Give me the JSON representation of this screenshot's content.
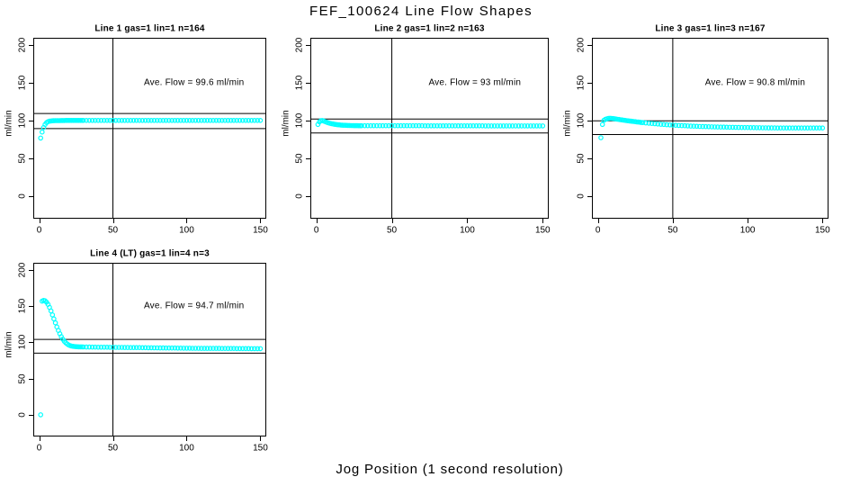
{
  "figure": {
    "title": "FEF_100624  Line Flow Shapes",
    "x_caption": "Jog Position (1 second resolution)",
    "y_axis_label": "ml/min",
    "colors": {
      "points": "#00FFFF",
      "lines": "#000000",
      "background": "#FFFFFF"
    }
  },
  "chart_data": [
    {
      "type": "scatter",
      "title": "Line 1 gas=1 lin=1 n=164",
      "gas": 1,
      "lin": 1,
      "n": 164,
      "ave_flow": 99.6,
      "annotation": "Ave. Flow =  99.6  ml/min",
      "row": 0,
      "col": 0,
      "xlim": [
        -4,
        154
      ],
      "ylim": [
        -30,
        210
      ],
      "x_ticks": [
        0,
        50,
        100,
        150
      ],
      "y_ticks": [
        0,
        50,
        100,
        150,
        200
      ],
      "vline_x": 50,
      "hlines": [
        109.6,
        89.6
      ],
      "x": [
        1,
        2,
        3,
        4,
        5,
        6,
        7,
        8,
        9,
        10,
        11,
        12,
        13,
        14,
        15,
        16,
        17,
        18,
        19,
        20,
        21,
        22,
        23,
        24,
        25,
        26,
        27,
        28,
        29,
        30,
        32,
        34,
        36,
        38,
        40,
        42,
        44,
        46,
        48,
        50,
        52,
        54,
        56,
        58,
        60,
        62,
        64,
        66,
        68,
        70,
        72,
        74,
        76,
        78,
        80,
        82,
        84,
        86,
        88,
        90,
        92,
        94,
        96,
        98,
        100,
        102,
        104,
        106,
        108,
        110,
        112,
        114,
        116,
        118,
        120,
        122,
        124,
        126,
        128,
        130,
        132,
        134,
        136,
        138,
        140,
        142,
        144,
        146,
        148,
        150
      ],
      "y": [
        77,
        85,
        91,
        95,
        97.5,
        98.7,
        99.4,
        99.7,
        99.9,
        100,
        100.1,
        100.1,
        100.2,
        100.2,
        100.3,
        100.3,
        100.3,
        100.4,
        100.4,
        100.4,
        100.4,
        100.4,
        100.4,
        100.4,
        100.4,
        100.4,
        100.4,
        100.4,
        100.4,
        100.4,
        100.4,
        100.4,
        100.4,
        100.4,
        100.4,
        100.4,
        100.4,
        100.4,
        100.4,
        100.4,
        100.4,
        100.4,
        100.4,
        100.4,
        100.4,
        100.4,
        100.4,
        100.4,
        100.4,
        100.4,
        100.4,
        100.4,
        100.4,
        100.4,
        100.4,
        100.4,
        100.4,
        100.4,
        100.4,
        100.4,
        100.4,
        100.4,
        100.4,
        100.4,
        100.4,
        100.4,
        100.4,
        100.4,
        100.4,
        100.4,
        100.4,
        100.4,
        100.4,
        100.4,
        100.4,
        100.4,
        100.4,
        100.4,
        100.4,
        100.4,
        100.4,
        100.4,
        100.4,
        100.4,
        100.4,
        100.4,
        100.4,
        100.4,
        100.4,
        100.4
      ]
    },
    {
      "type": "scatter",
      "title": "Line 2 gas=1 lin=2 n=163",
      "gas": 1,
      "lin": 2,
      "n": 163,
      "ave_flow": 93,
      "annotation": "Ave. Flow =  93  ml/min",
      "row": 0,
      "col": 1,
      "xlim": [
        -4,
        154
      ],
      "ylim": [
        -30,
        210
      ],
      "x_ticks": [
        0,
        50,
        100,
        150
      ],
      "y_ticks": [
        0,
        50,
        100,
        150,
        200
      ],
      "vline_x": 50,
      "hlines": [
        102.3,
        83.7
      ],
      "x": [
        1,
        2,
        3,
        4,
        5,
        6,
        7,
        8,
        9,
        10,
        11,
        12,
        13,
        14,
        15,
        16,
        17,
        18,
        19,
        20,
        21,
        22,
        23,
        24,
        25,
        26,
        27,
        28,
        29,
        30,
        32,
        34,
        36,
        38,
        40,
        42,
        44,
        46,
        48,
        50,
        52,
        54,
        56,
        58,
        60,
        62,
        64,
        66,
        68,
        70,
        72,
        74,
        76,
        78,
        80,
        82,
        84,
        86,
        88,
        90,
        92,
        94,
        96,
        98,
        100,
        102,
        104,
        106,
        108,
        110,
        112,
        114,
        116,
        118,
        120,
        122,
        124,
        126,
        128,
        130,
        132,
        134,
        136,
        138,
        140,
        142,
        144,
        146,
        148,
        150
      ],
      "y": [
        95,
        98.5,
        100,
        100.3,
        99.4,
        98.6,
        97.9,
        97.2,
        96.6,
        96.1,
        95.7,
        95.3,
        95,
        94.7,
        94.5,
        94.3,
        94.1,
        94,
        93.9,
        93.8,
        93.7,
        93.7,
        93.6,
        93.6,
        93.5,
        93.5,
        93.5,
        93.4,
        93.4,
        93.4,
        93.4,
        93.4,
        93.4,
        93.4,
        93.4,
        93.3,
        93.3,
        93.3,
        93.3,
        93.3,
        93.3,
        93.3,
        93.3,
        93.3,
        93.3,
        93.3,
        93.3,
        93.3,
        93.3,
        93.3,
        93.2,
        93.2,
        93.2,
        93.2,
        93.2,
        93.2,
        93.2,
        93.2,
        93.2,
        93.2,
        93.2,
        93.2,
        93.2,
        93.2,
        93.2,
        93.2,
        93.2,
        93.2,
        93.2,
        93.2,
        93.1,
        93.1,
        93.1,
        93.1,
        93.1,
        93.1,
        93.1,
        93.1,
        93.1,
        93.1,
        93.1,
        93.1,
        93.1,
        93.1,
        93.1,
        93.1,
        93.1,
        93.1,
        93.1,
        93.1
      ]
    },
    {
      "type": "scatter",
      "title": "Line 3 gas=1 lin=3 n=167",
      "gas": 1,
      "lin": 3,
      "n": 167,
      "ave_flow": 90.8,
      "annotation": "Ave. Flow =  90.8  ml/min",
      "row": 0,
      "col": 2,
      "xlim": [
        -4,
        154
      ],
      "ylim": [
        -30,
        210
      ],
      "x_ticks": [
        0,
        50,
        100,
        150
      ],
      "y_ticks": [
        0,
        50,
        100,
        150,
        200
      ],
      "vline_x": 50,
      "hlines": [
        99.9,
        81.7
      ],
      "x": [
        2,
        3,
        4,
        5,
        6,
        7,
        8,
        9,
        10,
        11,
        12,
        13,
        14,
        15,
        16,
        17,
        18,
        19,
        20,
        21,
        22,
        23,
        24,
        25,
        26,
        27,
        28,
        29,
        30,
        32,
        34,
        36,
        38,
        40,
        42,
        44,
        46,
        48,
        50,
        52,
        54,
        56,
        58,
        60,
        62,
        64,
        66,
        68,
        70,
        72,
        74,
        76,
        78,
        80,
        82,
        84,
        86,
        88,
        90,
        92,
        94,
        96,
        98,
        100,
        102,
        104,
        106,
        108,
        110,
        112,
        114,
        116,
        118,
        120,
        122,
        124,
        126,
        128,
        130,
        132,
        134,
        136,
        138,
        140,
        142,
        144,
        146,
        148,
        150
      ],
      "y": [
        77.5,
        95,
        100.5,
        101.8,
        102.5,
        103,
        103.2,
        103.1,
        102.9,
        102.6,
        102.3,
        102,
        101.7,
        101.4,
        101.1,
        100.8,
        100.5,
        100.2,
        99.9,
        99.7,
        99.4,
        99.2,
        98.9,
        98.7,
        98.4,
        98.2,
        98,
        97.7,
        97.5,
        97.1,
        96.7,
        96.3,
        96,
        95.6,
        95.3,
        95,
        94.7,
        94.4,
        94.2,
        93.9,
        93.7,
        93.5,
        93.3,
        93.1,
        92.9,
        92.8,
        92.6,
        92.4,
        92.3,
        92.2,
        92,
        91.9,
        91.8,
        91.7,
        91.6,
        91.5,
        91.4,
        91.3,
        91.3,
        91.2,
        91.1,
        91,
        91,
        90.9,
        90.8,
        90.8,
        90.7,
        90.7,
        90.6,
        90.6,
        90.5,
        90.5,
        90.5,
        90.4,
        90.4,
        90.4,
        90.4,
        90.3,
        90.3,
        90.3,
        90.3,
        90.3,
        90.3,
        90.3,
        90.3,
        90.3,
        90.3,
        90.3,
        90.3
      ]
    },
    {
      "type": "scatter",
      "title": "Line 4 (LT) gas=1 lin=4 n=3",
      "gas": 1,
      "lin": 4,
      "n": 3,
      "ave_flow": 94.7,
      "annotation": "Ave. Flow =  94.7  ml/min",
      "row": 1,
      "col": 0,
      "xlim": [
        -4,
        154
      ],
      "ylim": [
        -30,
        210
      ],
      "x_ticks": [
        0,
        50,
        100,
        150
      ],
      "y_ticks": [
        0,
        50,
        100,
        150,
        200
      ],
      "vline_x": 50,
      "hlines": [
        104.2,
        85.2
      ],
      "x": [
        1,
        2,
        3,
        4,
        5,
        6,
        7,
        8,
        9,
        10,
        11,
        12,
        13,
        14,
        15,
        16,
        17,
        18,
        19,
        20,
        21,
        22,
        23,
        24,
        25,
        26,
        27,
        28,
        29,
        30,
        32,
        34,
        36,
        38,
        40,
        42,
        44,
        46,
        48,
        50,
        52,
        54,
        56,
        58,
        60,
        62,
        64,
        66,
        68,
        70,
        72,
        74,
        76,
        78,
        80,
        82,
        84,
        86,
        88,
        90,
        92,
        94,
        96,
        98,
        100,
        102,
        104,
        106,
        108,
        110,
        112,
        114,
        116,
        118,
        120,
        122,
        124,
        126,
        128,
        130,
        132,
        134,
        136,
        138,
        140,
        142,
        144,
        146,
        148,
        150
      ],
      "y": [
        0,
        157,
        158,
        157.5,
        155.5,
        152.5,
        148.5,
        143.5,
        138,
        132.5,
        127,
        121.5,
        116.5,
        112,
        108,
        104.5,
        101.7,
        99.5,
        97.8,
        96.5,
        95.6,
        95,
        94.6,
        94.3,
        94.1,
        94,
        93.9,
        93.8,
        93.8,
        93.7,
        93.6,
        93.6,
        93.5,
        93.5,
        93.4,
        93.4,
        93.3,
        93.3,
        93.2,
        93.2,
        93.1,
        93.1,
        93.1,
        93,
        93,
        92.9,
        92.9,
        92.8,
        92.8,
        92.7,
        92.7,
        92.6,
        92.6,
        92.5,
        92.5,
        92.4,
        92.4,
        92.3,
        92.3,
        92.2,
        92.2,
        92.1,
        92.1,
        92,
        92,
        92,
        91.9,
        91.9,
        91.9,
        91.8,
        91.8,
        91.8,
        91.7,
        91.7,
        91.7,
        91.7,
        91.6,
        91.6,
        91.6,
        91.6,
        91.6,
        91.5,
        91.5,
        91.5,
        91.5,
        91.5,
        91.4,
        91.4,
        91.4,
        91.4
      ]
    }
  ]
}
